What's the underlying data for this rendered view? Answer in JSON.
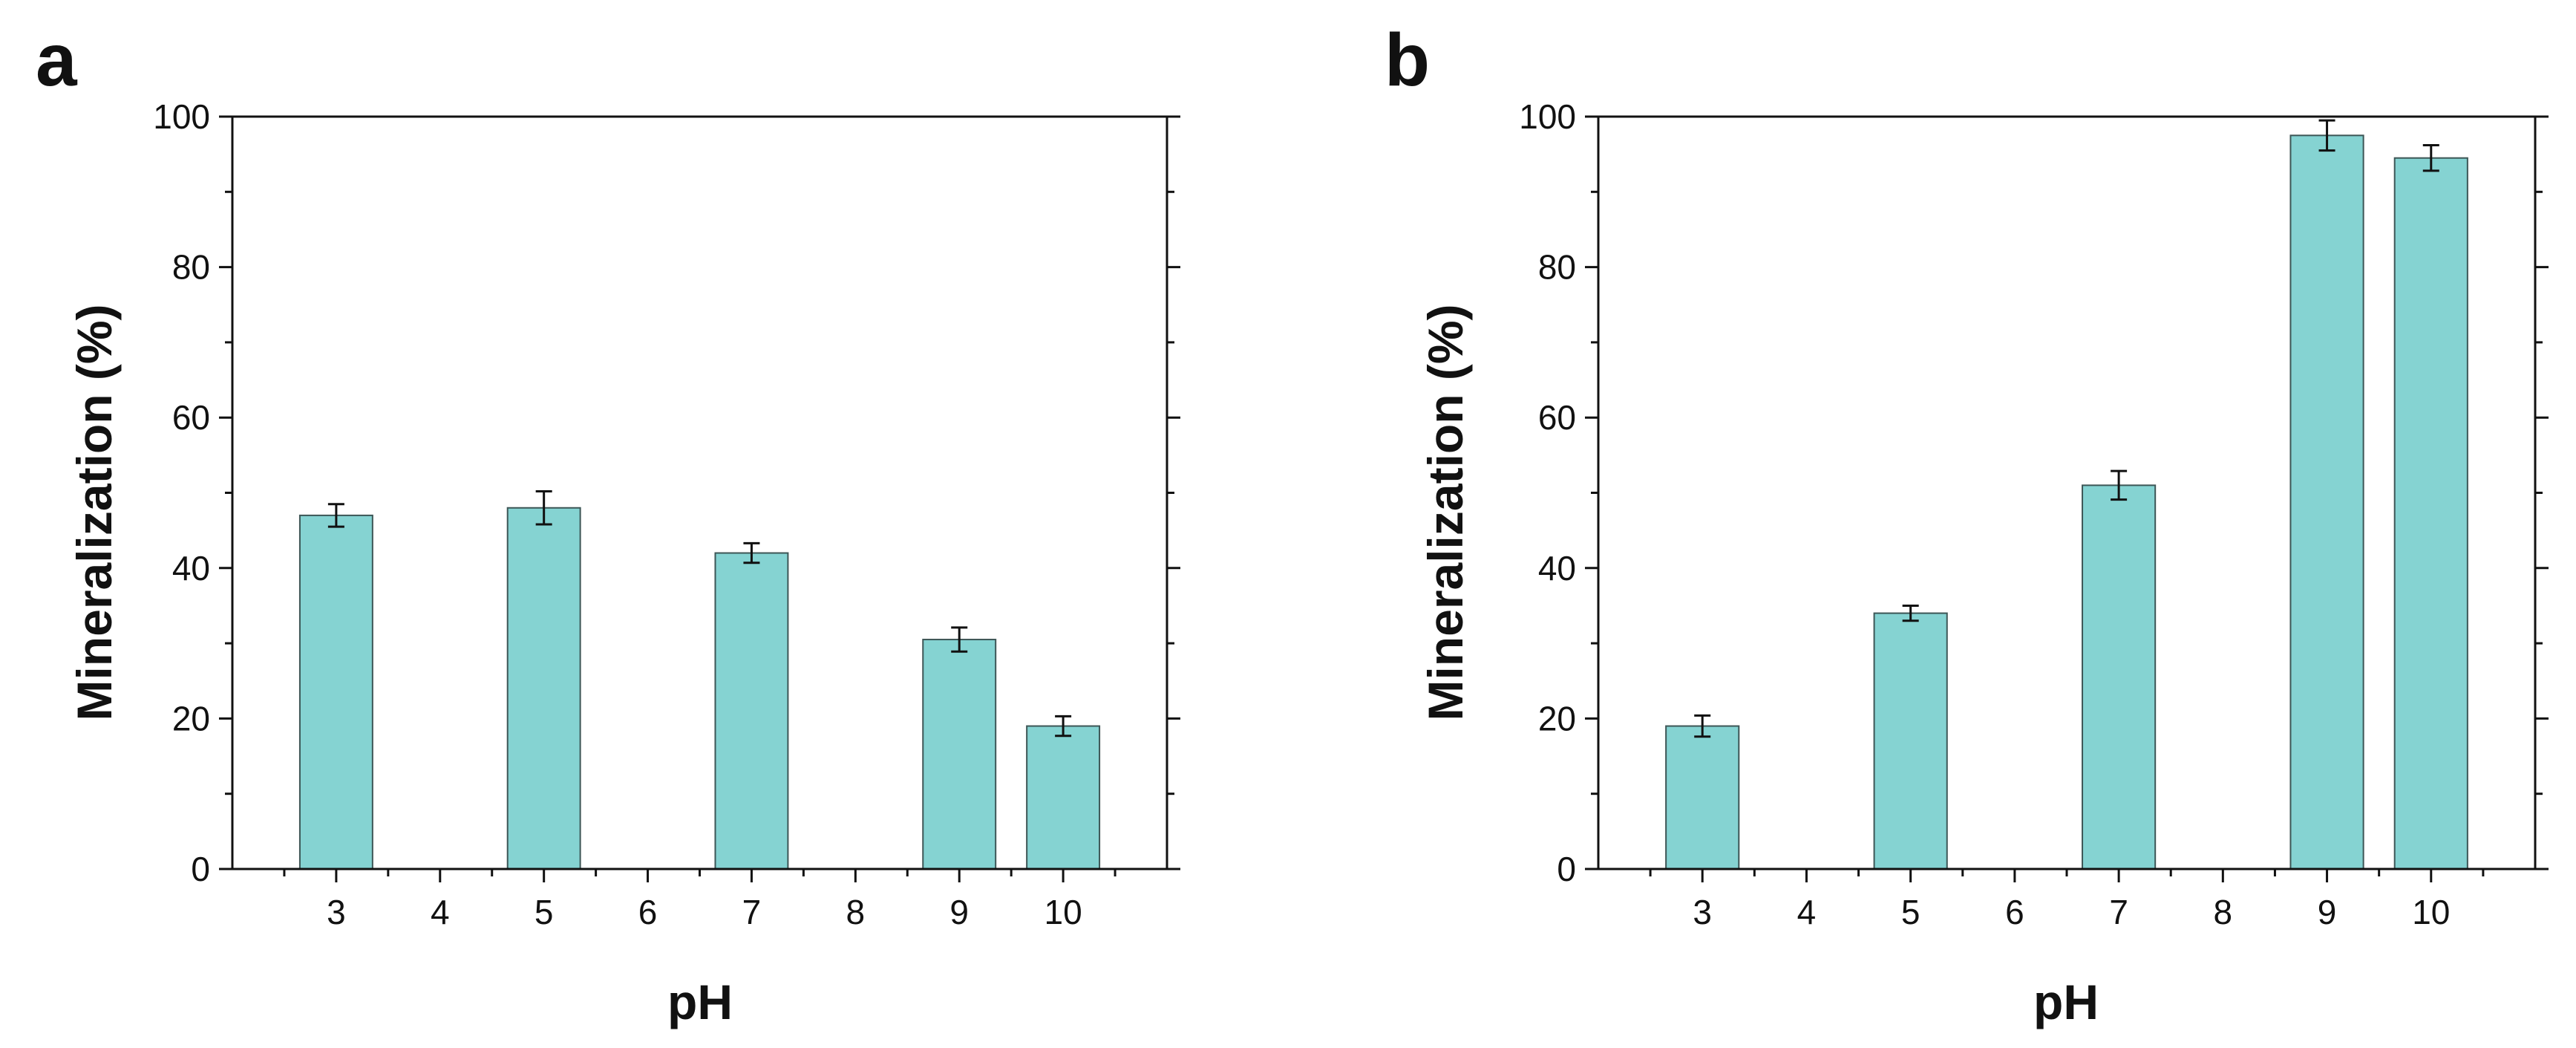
{
  "chart_data": [
    {
      "type": "bar",
      "panel_label": "a",
      "title": "",
      "xlabel": "pH",
      "ylabel": "Mineralization (%)",
      "ylim": [
        0,
        100
      ],
      "xlim": [
        2,
        11
      ],
      "yticks": [
        0,
        20,
        40,
        60,
        80,
        100
      ],
      "xticks": [
        3,
        4,
        5,
        6,
        7,
        8,
        9,
        10
      ],
      "x": [
        3,
        5,
        7,
        9,
        10
      ],
      "values": [
        47,
        48,
        42,
        30.5,
        19
      ],
      "errors": [
        1.5,
        2.2,
        1.3,
        1.6,
        1.3
      ],
      "bar_color": "#85d3d2",
      "bar_edge_color": "#3d5656"
    },
    {
      "type": "bar",
      "panel_label": "b",
      "title": "",
      "xlabel": "pH",
      "ylabel": "Mineralization (%)",
      "ylim": [
        0,
        100
      ],
      "xlim": [
        2,
        11
      ],
      "yticks": [
        0,
        20,
        40,
        60,
        80,
        100
      ],
      "xticks": [
        3,
        4,
        5,
        6,
        7,
        8,
        9,
        10
      ],
      "x": [
        3,
        5,
        7,
        9,
        10
      ],
      "values": [
        19,
        34,
        51,
        97.5,
        94.5
      ],
      "errors": [
        1.4,
        1.0,
        1.9,
        2.0,
        1.7
      ],
      "bar_color": "#85d3d2",
      "bar_edge_color": "#3d5656"
    }
  ]
}
